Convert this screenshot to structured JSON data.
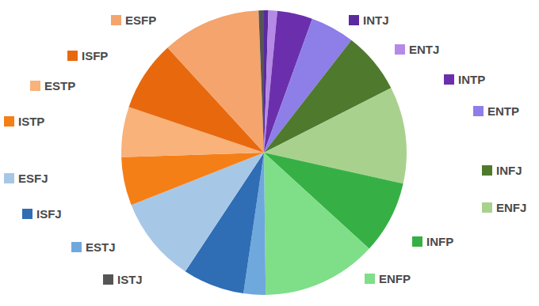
{
  "chart_data": {
    "type": "pie",
    "categories": [
      "INTJ",
      "ENTJ",
      "INTP",
      "ENTP",
      "INFJ",
      "ENFJ",
      "INFP",
      "ENFP",
      "ESTJ",
      "ISFJ",
      "ESFJ",
      "ISTP",
      "ESTP",
      "ISFP",
      "ESFP",
      "ISTJ"
    ],
    "values": [
      0.5,
      1,
      4,
      5,
      7,
      11,
      8.3,
      13,
      2.5,
      7,
      9.7,
      5.5,
      5.7,
      8,
      11.2,
      0.6
    ],
    "colors": [
      "#5b2a9e",
      "#b48ae6",
      "#6b2fad",
      "#8e7ee8",
      "#4f7a2e",
      "#a9d18e",
      "#36b045",
      "#7fde88",
      "#6fa8dc",
      "#2f6db5",
      "#a7c7e7",
      "#f57f17",
      "#f8b27a",
      "#e8690d",
      "#f4a46c",
      "#555555"
    ],
    "data_labels": false
  }
}
